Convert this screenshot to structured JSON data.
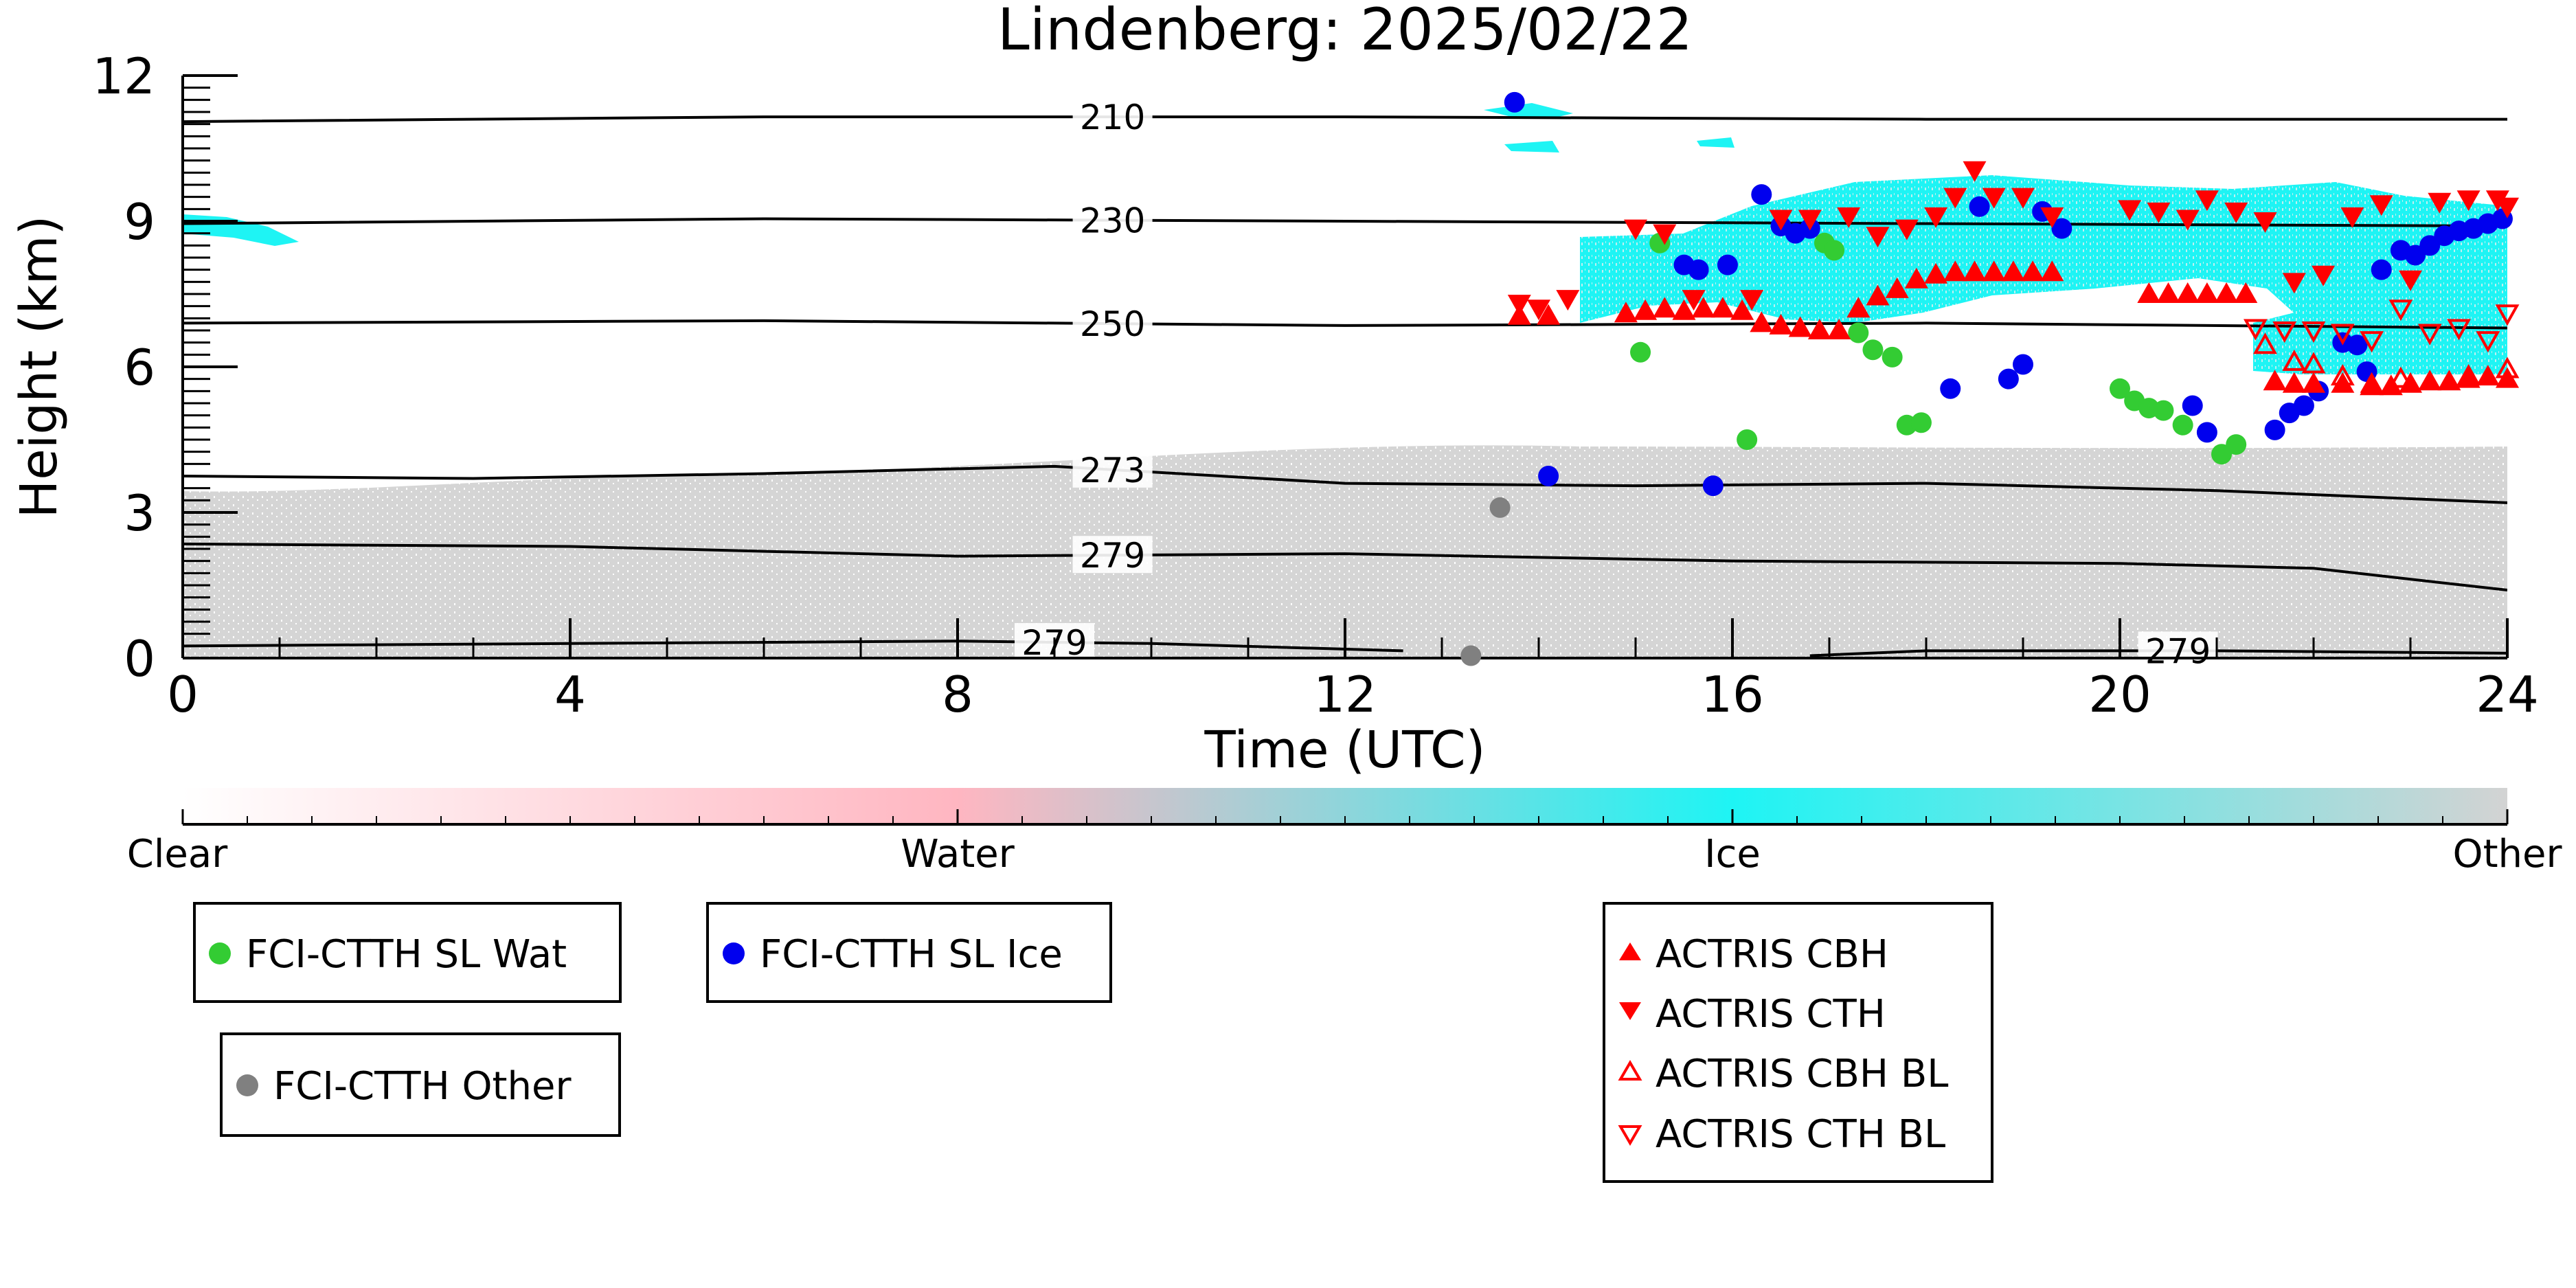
{
  "chart_data": {
    "type": "scatter",
    "title": "Lindenberg: 2025/02/22",
    "xlabel": "Time (UTC)",
    "ylabel": "Height (km)",
    "xlim": [
      0,
      24
    ],
    "ylim": [
      0,
      12
    ],
    "x_ticks": [
      "0",
      "4",
      "8",
      "12",
      "16",
      "20",
      "24"
    ],
    "y_ticks": [
      "0",
      "3",
      "6",
      "9",
      "12"
    ],
    "grid": false,
    "colorbar": {
      "labels": [
        "Clear",
        "Water",
        "Ice",
        "Other"
      ],
      "colors": {
        "clear": "#ffffff",
        "water": "#ffb6c1",
        "ice": "#1ef4f4",
        "other": "#d3d3d3"
      }
    },
    "isotherms": [
      {
        "label": "210",
        "points": [
          [
            0,
            11.05
          ],
          [
            6,
            11.15
          ],
          [
            12,
            11.15
          ],
          [
            18,
            11.1
          ],
          [
            24,
            11.1
          ]
        ]
      },
      {
        "label": "230",
        "points": [
          [
            0,
            8.95
          ],
          [
            6,
            9.05
          ],
          [
            12,
            9.0
          ],
          [
            18,
            8.95
          ],
          [
            24,
            8.9
          ]
        ]
      },
      {
        "label": "250",
        "points": [
          [
            0,
            6.9
          ],
          [
            6,
            6.95
          ],
          [
            12,
            6.85
          ],
          [
            18,
            6.9
          ],
          [
            24,
            6.8
          ]
        ]
      },
      {
        "label": "273",
        "points": [
          [
            0,
            3.75
          ],
          [
            3,
            3.7
          ],
          [
            6,
            3.8
          ],
          [
            9,
            3.95
          ],
          [
            12,
            3.6
          ],
          [
            15,
            3.55
          ],
          [
            18,
            3.6
          ],
          [
            21,
            3.45
          ],
          [
            24,
            3.2
          ]
        ]
      },
      {
        "label": "279",
        "points": [
          [
            0,
            2.35
          ],
          [
            4,
            2.3
          ],
          [
            8,
            2.1
          ],
          [
            12,
            2.15
          ],
          [
            16,
            2.0
          ],
          [
            20,
            1.95
          ],
          [
            22,
            1.85
          ],
          [
            24,
            1.4
          ]
        ]
      },
      {
        "label": "279",
        "points": [
          [
            0,
            0.25
          ],
          [
            4,
            0.3
          ],
          [
            8,
            0.35
          ],
          [
            10,
            0.3
          ],
          [
            12.6,
            0.15
          ]
        ]
      },
      {
        "label": "279",
        "points": [
          [
            16.8,
            0.05
          ],
          [
            18,
            0.15
          ],
          [
            21,
            0.15
          ],
          [
            24,
            0.1
          ]
        ]
      }
    ],
    "series": [
      {
        "name": "FCI-CTTH SL Wat",
        "color": "#33cc33",
        "marker": "circle",
        "points": [
          [
            15.05,
            6.3
          ],
          [
            15.25,
            8.55
          ],
          [
            16.15,
            4.5
          ],
          [
            16.95,
            8.55
          ],
          [
            17.05,
            8.4
          ],
          [
            17.3,
            6.7
          ],
          [
            17.45,
            6.35
          ],
          [
            17.65,
            6.2
          ],
          [
            17.8,
            4.8
          ],
          [
            17.95,
            4.85
          ],
          [
            20.0,
            5.55
          ],
          [
            20.15,
            5.3
          ],
          [
            20.3,
            5.15
          ],
          [
            20.45,
            5.1
          ],
          [
            20.65,
            4.8
          ],
          [
            21.05,
            4.2
          ],
          [
            21.2,
            4.4
          ]
        ]
      },
      {
        "name": "FCI-CTTH SL Ice",
        "color": "#0000ee",
        "marker": "circle",
        "points": [
          [
            13.75,
            11.45
          ],
          [
            14.1,
            3.75
          ],
          [
            15.5,
            8.1
          ],
          [
            15.65,
            8.0
          ],
          [
            15.8,
            3.55
          ],
          [
            15.95,
            8.1
          ],
          [
            16.3,
            9.55
          ],
          [
            16.5,
            8.9
          ],
          [
            16.65,
            8.75
          ],
          [
            16.8,
            8.85
          ],
          [
            18.25,
            5.55
          ],
          [
            18.55,
            9.3
          ],
          [
            18.85,
            5.75
          ],
          [
            19.0,
            6.05
          ],
          [
            19.2,
            9.2
          ],
          [
            19.4,
            8.85
          ],
          [
            20.75,
            5.2
          ],
          [
            20.9,
            4.65
          ],
          [
            21.6,
            4.7
          ],
          [
            21.75,
            5.05
          ],
          [
            21.9,
            5.2
          ],
          [
            22.05,
            5.5
          ],
          [
            22.3,
            6.5
          ],
          [
            22.45,
            6.45
          ],
          [
            22.55,
            5.9
          ],
          [
            22.7,
            8.0
          ],
          [
            22.9,
            8.4
          ],
          [
            23.05,
            8.3
          ],
          [
            23.2,
            8.5
          ],
          [
            23.35,
            8.7
          ],
          [
            23.5,
            8.8
          ],
          [
            23.65,
            8.85
          ],
          [
            23.8,
            8.95
          ],
          [
            23.95,
            9.05
          ]
        ]
      },
      {
        "name": "FCI-CTTH Other",
        "color": "#808080",
        "marker": "circle",
        "points": [
          [
            13.6,
            3.1
          ],
          [
            13.3,
            0.05
          ]
        ]
      },
      {
        "name": "ACTRIS CBH",
        "color": "#ff0000",
        "marker": "triangle-up",
        "points": [
          [
            13.8,
            7.05
          ],
          [
            14.1,
            7.05
          ],
          [
            14.9,
            7.1
          ],
          [
            15.1,
            7.15
          ],
          [
            15.3,
            7.2
          ],
          [
            15.5,
            7.15
          ],
          [
            15.7,
            7.2
          ],
          [
            15.9,
            7.2
          ],
          [
            16.1,
            7.15
          ],
          [
            16.3,
            6.9
          ],
          [
            16.5,
            6.85
          ],
          [
            16.7,
            6.8
          ],
          [
            16.9,
            6.75
          ],
          [
            17.1,
            6.75
          ],
          [
            17.3,
            7.2
          ],
          [
            17.5,
            7.45
          ],
          [
            17.7,
            7.6
          ],
          [
            17.9,
            7.8
          ],
          [
            18.1,
            7.9
          ],
          [
            18.3,
            7.95
          ],
          [
            18.5,
            7.95
          ],
          [
            18.7,
            7.95
          ],
          [
            18.9,
            7.95
          ],
          [
            19.1,
            7.95
          ],
          [
            19.3,
            7.95
          ],
          [
            20.3,
            7.5
          ],
          [
            20.5,
            7.5
          ],
          [
            20.7,
            7.5
          ],
          [
            20.9,
            7.5
          ],
          [
            21.1,
            7.5
          ],
          [
            21.3,
            7.5
          ],
          [
            21.6,
            5.7
          ],
          [
            21.8,
            5.65
          ],
          [
            22.0,
            5.65
          ],
          [
            22.3,
            5.65
          ],
          [
            22.6,
            5.65
          ],
          [
            22.8,
            5.6
          ],
          [
            23.0,
            5.65
          ],
          [
            23.2,
            5.7
          ],
          [
            23.4,
            5.7
          ],
          [
            23.6,
            5.75
          ],
          [
            23.8,
            5.8
          ],
          [
            24.0,
            5.75
          ]
        ]
      },
      {
        "name": "ACTRIS CTH",
        "color": "#ff0000",
        "marker": "triangle-down",
        "points": [
          [
            13.8,
            7.3
          ],
          [
            14.0,
            7.2
          ],
          [
            14.3,
            7.4
          ],
          [
            15.0,
            8.85
          ],
          [
            15.3,
            8.75
          ],
          [
            15.6,
            7.4
          ],
          [
            16.2,
            7.4
          ],
          [
            16.5,
            9.05
          ],
          [
            16.8,
            9.05
          ],
          [
            17.2,
            9.1
          ],
          [
            17.5,
            8.7
          ],
          [
            17.8,
            8.85
          ],
          [
            18.1,
            9.1
          ],
          [
            18.3,
            9.5
          ],
          [
            18.5,
            10.05
          ],
          [
            18.7,
            9.5
          ],
          [
            19.0,
            9.5
          ],
          [
            19.3,
            9.1
          ],
          [
            20.1,
            9.25
          ],
          [
            20.4,
            9.2
          ],
          [
            20.7,
            9.05
          ],
          [
            20.9,
            9.45
          ],
          [
            21.2,
            9.2
          ],
          [
            21.5,
            9.0
          ],
          [
            21.8,
            7.75
          ],
          [
            22.1,
            7.9
          ],
          [
            22.4,
            9.1
          ],
          [
            22.7,
            9.35
          ],
          [
            23.0,
            7.8
          ],
          [
            23.3,
            9.4
          ],
          [
            23.6,
            9.45
          ],
          [
            23.9,
            9.45
          ],
          [
            24.0,
            9.3
          ]
        ]
      },
      {
        "name": "ACTRIS CBH BL",
        "color": "#ff0000",
        "marker": "triangle-up-open",
        "points": [
          [
            21.5,
            6.45
          ],
          [
            21.8,
            6.1
          ],
          [
            22.0,
            6.05
          ],
          [
            22.3,
            5.8
          ],
          [
            22.6,
            5.6
          ],
          [
            22.9,
            5.75
          ],
          [
            23.6,
            5.8
          ],
          [
            24.0,
            5.95
          ]
        ]
      },
      {
        "name": "ACTRIS CTH BL",
        "color": "#ff0000",
        "marker": "triangle-down-open",
        "points": [
          [
            21.4,
            6.8
          ],
          [
            21.7,
            6.75
          ],
          [
            22.0,
            6.75
          ],
          [
            22.3,
            6.7
          ],
          [
            22.6,
            6.55
          ],
          [
            22.9,
            7.2
          ],
          [
            23.2,
            6.7
          ],
          [
            23.5,
            6.8
          ],
          [
            23.8,
            6.55
          ],
          [
            24.0,
            7.1
          ]
        ]
      }
    ],
    "legend": {
      "box1": [
        "FCI-CTTH SL Wat"
      ],
      "box2": [
        "FCI-CTTH SL Ice"
      ],
      "box3": [
        "FCI-CTTH Other"
      ],
      "box4": [
        "ACTRIS CBH",
        "ACTRIS CTH",
        "ACTRIS CBH BL",
        "ACTRIS CTH BL"
      ]
    }
  }
}
